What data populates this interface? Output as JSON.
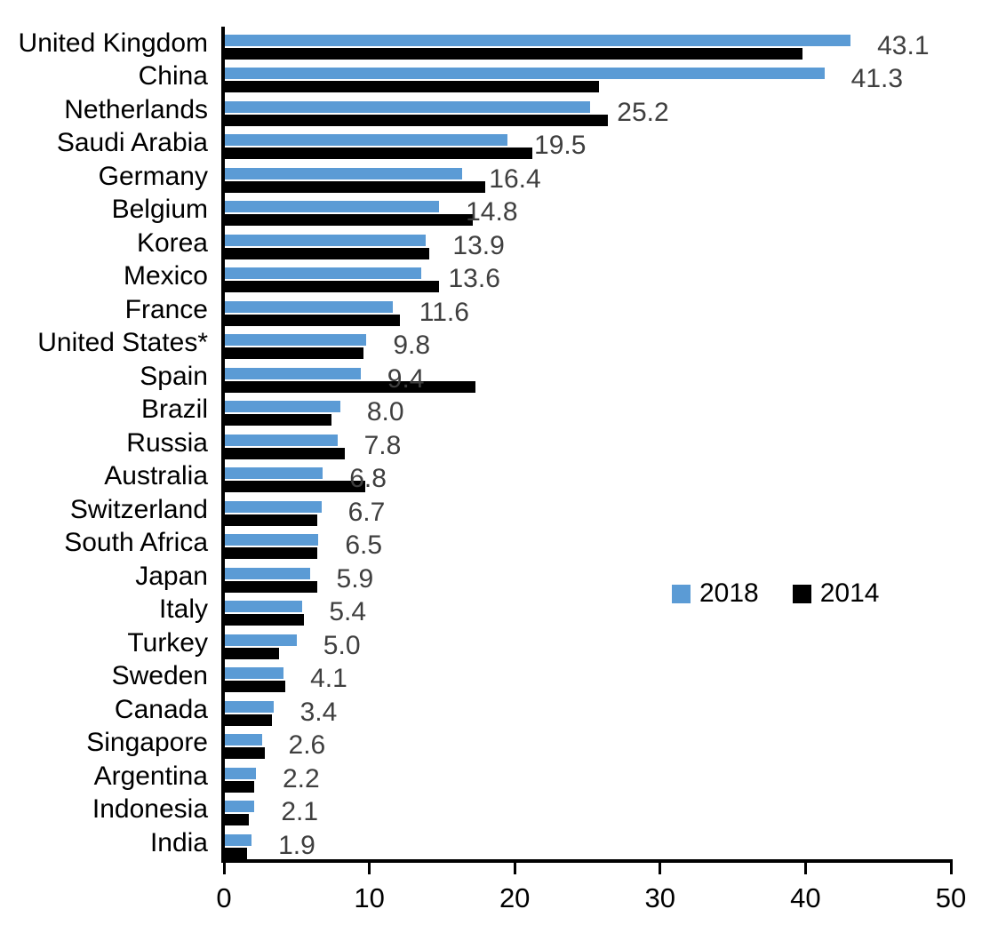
{
  "chart_data": {
    "type": "bar",
    "orientation": "horizontal",
    "title": "",
    "xlabel": "",
    "ylabel": "",
    "categories": [
      "United Kingdom",
      "China",
      "Netherlands",
      "Saudi Arabia",
      "Germany",
      "Belgium",
      "Korea",
      "Mexico",
      "France",
      "United States*",
      "Spain",
      "Brazil",
      "Russia",
      "Australia",
      "Switzerland",
      "South Africa",
      "Japan",
      "Italy",
      "Turkey",
      "Sweden",
      "Canada",
      "Singapore",
      "Argentina",
      "Indonesia",
      "India"
    ],
    "series": [
      {
        "name": "2018",
        "color": "#5B9BD5",
        "values": [
          43.1,
          41.3,
          25.2,
          19.5,
          16.4,
          14.8,
          13.9,
          13.6,
          11.6,
          9.8,
          9.4,
          8.0,
          7.8,
          6.8,
          6.7,
          6.5,
          5.9,
          5.4,
          5.0,
          4.1,
          3.4,
          2.6,
          2.2,
          2.1,
          1.9
        ]
      },
      {
        "name": "2014",
        "color": "#000000",
        "values": [
          39.8,
          25.8,
          26.4,
          21.2,
          18.0,
          17.1,
          14.1,
          14.8,
          12.1,
          9.6,
          17.3,
          7.4,
          8.3,
          9.7,
          6.4,
          6.4,
          6.4,
          5.5,
          3.8,
          4.2,
          3.3,
          2.8,
          2.1,
          1.7,
          1.6
        ]
      }
    ],
    "data_labels": {
      "labeled_series": "2018",
      "values": [
        "43.1",
        "41.3",
        "25.2",
        "19.5",
        "16.4",
        "14.8",
        "13.9",
        "13.6",
        "11.6",
        "9.8",
        "9.4",
        "8.0",
        "7.8",
        "6.8",
        "6.7",
        "6.5",
        "5.9",
        "5.4",
        "5.0",
        "4.1",
        "3.4",
        "2.6",
        "2.2",
        "2.1",
        "1.9"
      ]
    },
    "xlim": [
      0,
      50
    ],
    "x_ticks": [
      "0",
      "10",
      "20",
      "30",
      "40",
      "50"
    ],
    "grid": false,
    "legend": {
      "position": "center-right",
      "items": [
        {
          "label": "2018",
          "color": "#5B9BD5"
        },
        {
          "label": "2014",
          "color": "#000000"
        }
      ]
    }
  },
  "colors": {
    "background": "#ffffff",
    "axis": "#000000",
    "value_label": "#3f3f3f",
    "bar_2018": "#5B9BD5",
    "bar_2014": "#000000"
  }
}
